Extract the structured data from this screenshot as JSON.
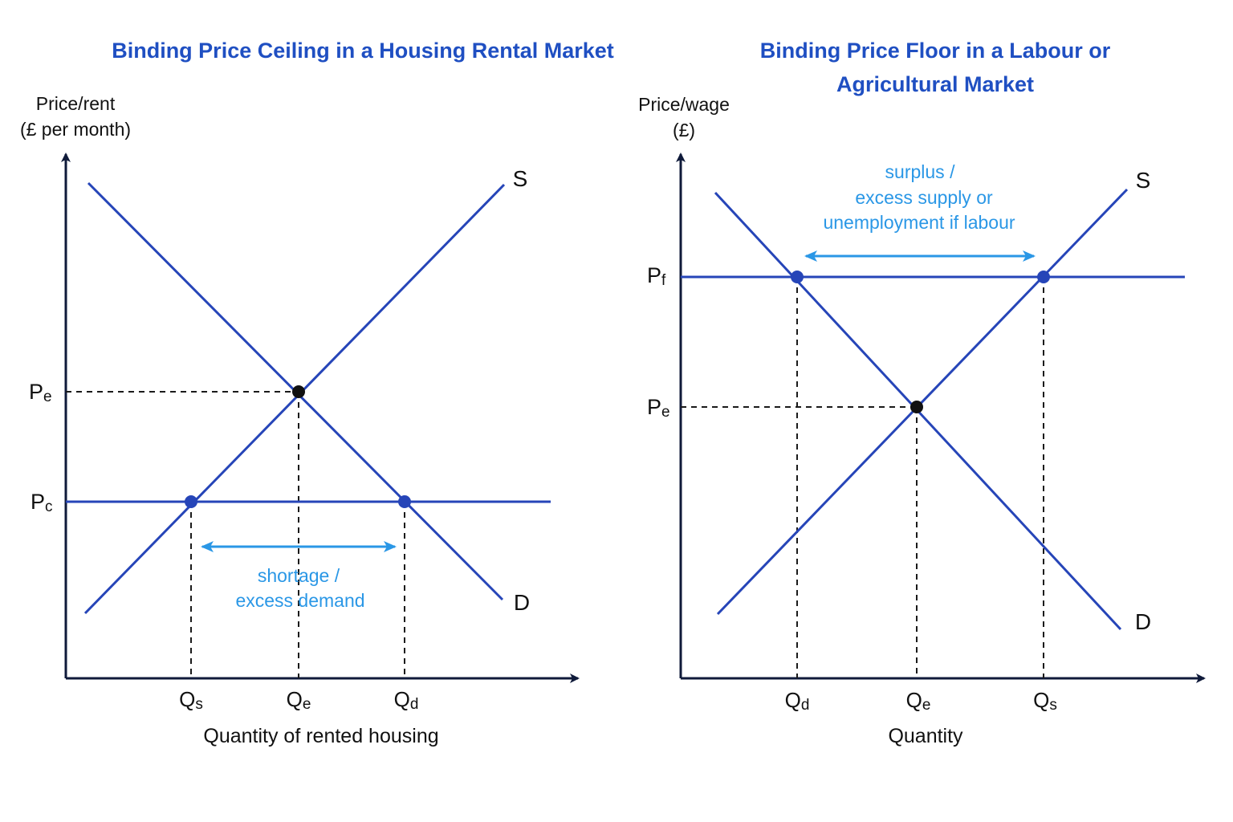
{
  "left_diagram": {
    "title": "Binding Price Ceiling in a Housing Rental Market",
    "y_axis_label_line1": "Price/rent",
    "y_axis_label_line2": "(£ per month)",
    "x_axis_label": "Quantity of rented housing",
    "price_labels": {
      "equilibrium": {
        "main": "P",
        "sub": "e"
      },
      "ceiling": {
        "main": "P",
        "sub": "c"
      }
    },
    "quantity_labels": {
      "supplied": {
        "main": "Q",
        "sub": "s"
      },
      "equilibrium": {
        "main": "Q",
        "sub": "e"
      },
      "demanded": {
        "main": "Q",
        "sub": "d"
      }
    },
    "curve_labels": {
      "supply": "S",
      "demand": "D"
    },
    "annotation_line1": "shortage /",
    "annotation_line2": "excess demand"
  },
  "right_diagram": {
    "title_line1": "Binding Price Floor in a Labour or",
    "title_line2": "Agricultural Market",
    "y_axis_label_line1": "Price/wage",
    "y_axis_label_line2": "(£)",
    "x_axis_label": "Quantity",
    "price_labels": {
      "floor": {
        "main": "P",
        "sub": "f"
      },
      "equilibrium": {
        "main": "P",
        "sub": "e"
      }
    },
    "quantity_labels": {
      "demanded": {
        "main": "Q",
        "sub": "d"
      },
      "equilibrium": {
        "main": "Q",
        "sub": "e"
      },
      "supplied": {
        "main": "Q",
        "sub": "s"
      }
    },
    "curve_labels": {
      "supply": "S",
      "demand": "D"
    },
    "annotation_line1": "surplus /",
    "annotation_line2": "excess supply or",
    "annotation_line3": "unemployment if labour"
  },
  "colors": {
    "title": "#1f4fc2",
    "curves": "#2645b8",
    "annotation": "#2a97e6",
    "axes": "#0f1a3a",
    "equilibrium_point": "#111111"
  }
}
